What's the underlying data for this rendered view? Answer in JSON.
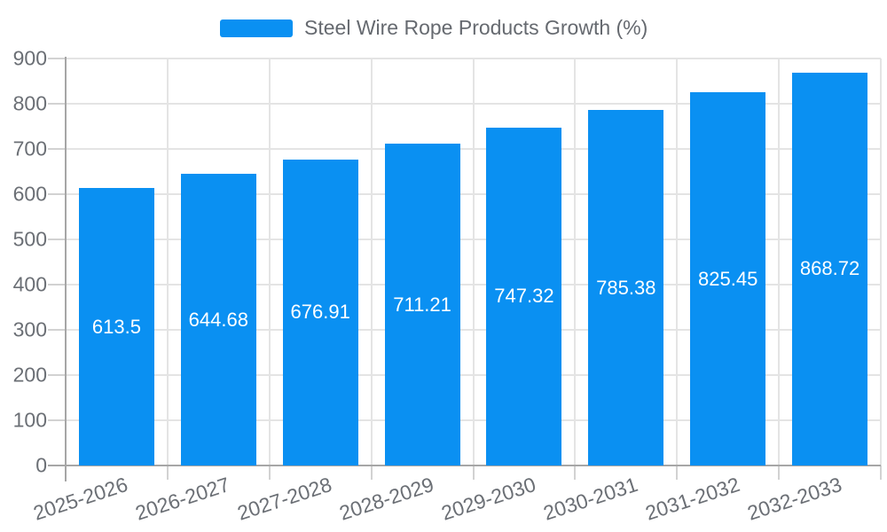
{
  "legend": {
    "label": "Steel Wire Rope Products Growth (%)"
  },
  "chart_data": {
    "type": "bar",
    "title": "Steel Wire Rope Products Growth (%)",
    "categories": [
      "2025-2026",
      "2026-2027",
      "2027-2028",
      "2028-2029",
      "2029-2030",
      "2030-2031",
      "2031-2032",
      "2032-2033"
    ],
    "values": [
      613.5,
      644.68,
      676.91,
      711.21,
      747.32,
      785.38,
      825.45,
      868.72
    ],
    "value_labels": [
      "613.5",
      "644.68",
      "676.91",
      "711.21",
      "747.32",
      "785.38",
      "825.45",
      "868.72"
    ],
    "xlabel": "",
    "ylabel": "",
    "ylim": [
      0,
      900
    ],
    "yticks": [
      0,
      100,
      200,
      300,
      400,
      500,
      600,
      700,
      800,
      900
    ],
    "grid": true,
    "legend_position": "top",
    "bar_color": "#0a90f2",
    "value_label_color": "#ffffff",
    "axis_text_color": "#6b6f75"
  }
}
